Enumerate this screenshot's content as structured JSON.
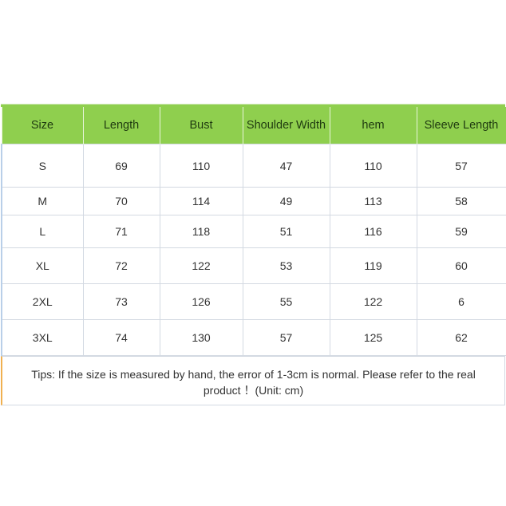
{
  "table": {
    "headers": [
      "Size",
      "Length",
      "Bust",
      "Shoulder Width",
      "hem",
      "Sleeve Length"
    ],
    "rows": [
      [
        "S",
        "69",
        "110",
        "47",
        "110",
        "57"
      ],
      [
        "M",
        "70",
        "114",
        "49",
        "113",
        "58"
      ],
      [
        "L",
        "71",
        "118",
        "51",
        "116",
        "59"
      ],
      [
        "XL",
        "72",
        "122",
        "53",
        "119",
        "60"
      ],
      [
        "2XL",
        "73",
        "126",
        "55",
        "122",
        "6"
      ],
      [
        "3XL",
        "74",
        "130",
        "57",
        "125",
        "62"
      ]
    ]
  },
  "tips": "Tips: If the size is measured by hand, the error of 1-3cm is normal. Please refer to the real product ！(Unit: cm)",
  "colors": {
    "header_bg": "#8fcf4e"
  }
}
